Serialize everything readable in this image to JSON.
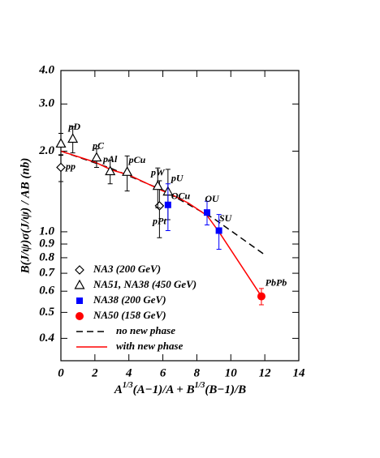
{
  "chart_data": {
    "type": "scatter",
    "ylabel": "B(J/ψ)σ(J/ψ) / AB  (nb)",
    "xlabel": [
      "A",
      "1/3",
      "(A−1)/A + B",
      "1/3",
      "(B−1)/B"
    ],
    "xlim": [
      0,
      14
    ],
    "xticks": [
      0,
      2,
      4,
      6,
      8,
      10,
      12,
      14
    ],
    "ylim": [
      0.33,
      4.0
    ],
    "log_y": true,
    "yticks": [
      0.4,
      0.5,
      0.6,
      0.7,
      0.8,
      0.9,
      {
        "value": 1,
        "label": "1.0"
      },
      {
        "value": 2,
        "label": "2.0"
      },
      {
        "value": 3,
        "label": "3.0"
      },
      {
        "value": 4,
        "label": "4.0"
      }
    ],
    "legend": "lower left",
    "series": [
      {
        "name": "NA3 (200 GeV)",
        "color": "#000000",
        "marker": "diamond",
        "filled": false,
        "x": [
          0,
          5.8
        ],
        "values": [
          1.74,
          1.25
        ],
        "errors": [
          0.2,
          0.3
        ],
        "point_labels": [
          "pp",
          "pPt"
        ]
      },
      {
        "name": "NA51, NA38 (450 GeV)",
        "color": "#000000",
        "marker": "triangle",
        "filled": false,
        "x": [
          0,
          0.7,
          2.1,
          2.9,
          3.9,
          5.7,
          6.3
        ],
        "values": [
          2.13,
          2.22,
          1.89,
          1.68,
          1.67,
          1.48,
          1.41
        ],
        "errors": [
          0.2,
          0.25,
          0.15,
          0.17,
          0.25,
          0.25,
          0.3
        ],
        "point_labels": [
          null,
          "pD",
          "pC",
          "pAl",
          "pCu",
          "pW",
          "pU"
        ]
      },
      {
        "name": "NA38 (200 GeV)",
        "color": "#0000ff",
        "marker": "square",
        "filled": true,
        "x": [
          6.3,
          8.6,
          9.3
        ],
        "values": [
          1.26,
          1.18,
          1.01
        ],
        "errors": [
          0.25,
          0.12,
          0.15
        ],
        "point_labels": [
          "OCu",
          "OU",
          "SU"
        ]
      },
      {
        "name": "NA50 (158 GeV)",
        "color": "#ff0000",
        "marker": "circle",
        "filled": true,
        "x": [
          11.8
        ],
        "values": [
          0.574
        ],
        "errors": [
          0.04
        ],
        "point_labels": [
          "PbPb"
        ]
      }
    ],
    "lines": [
      {
        "name": "no new phase",
        "color": "#000000",
        "dashed": true,
        "x": [
          0,
          3,
          6,
          9,
          12
        ],
        "values": [
          2.0,
          1.72,
          1.43,
          1.12,
          0.82
        ]
      },
      {
        "name": "with new phase",
        "color": "#ff0000",
        "dashed": false,
        "x": [
          0,
          2,
          3,
          4,
          6,
          6.3,
          7.5,
          8.6,
          9.3,
          11.8
        ],
        "values": [
          2.0,
          1.82,
          1.7,
          1.63,
          1.42,
          1.4,
          1.28,
          1.15,
          1.0,
          0.574
        ]
      }
    ]
  }
}
